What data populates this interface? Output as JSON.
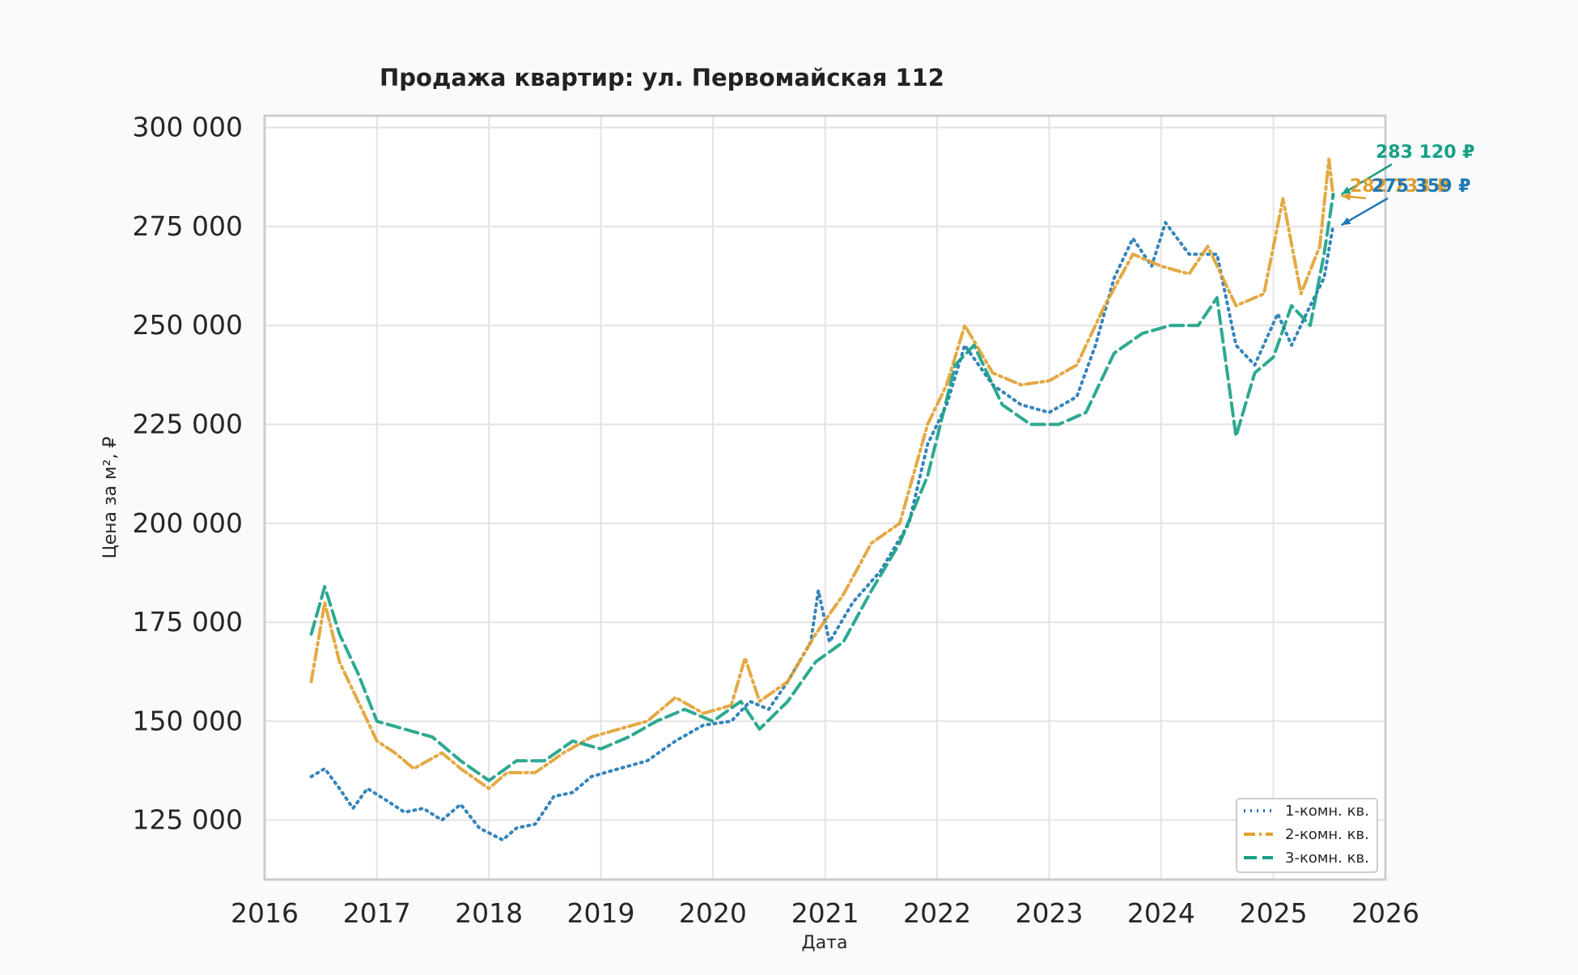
{
  "chart_data": {
    "type": "line",
    "title": "Продажа квартир: ул. Первомайская 112",
    "xlabel": "Дата",
    "ylabel": "Цена за м², ₽",
    "xlim": [
      "2016-01-01",
      "2026-01-01"
    ],
    "ylim": [
      110000,
      303000
    ],
    "x_ticks": [
      "2016",
      "2017",
      "2018",
      "2019",
      "2020",
      "2021",
      "2022",
      "2023",
      "2024",
      "2025",
      "2026"
    ],
    "y_ticks": [
      125000,
      150000,
      175000,
      200000,
      225000,
      250000,
      275000,
      300000
    ],
    "y_tick_labels": [
      "125 000",
      "150 000",
      "175 000",
      "200 000",
      "225 000",
      "250 000",
      "275 000",
      "300 000"
    ],
    "grid": true,
    "legend_position": "bottom-right",
    "series": [
      {
        "name": "1-комн. кв.",
        "color": "#1f78b4",
        "style": "dotted",
        "points": [
          [
            "2016-06-01",
            136000
          ],
          [
            "2016-07-15",
            138000
          ],
          [
            "2016-09-01",
            133000
          ],
          [
            "2016-10-15",
            128000
          ],
          [
            "2016-12-01",
            133000
          ],
          [
            "2017-02-01",
            130000
          ],
          [
            "2017-04-01",
            127000
          ],
          [
            "2017-06-01",
            128000
          ],
          [
            "2017-08-01",
            125000
          ],
          [
            "2017-10-01",
            129000
          ],
          [
            "2017-12-01",
            123000
          ],
          [
            "2018-02-15",
            120000
          ],
          [
            "2018-04-01",
            123000
          ],
          [
            "2018-06-01",
            124000
          ],
          [
            "2018-08-01",
            131000
          ],
          [
            "2018-10-01",
            132000
          ],
          [
            "2018-12-01",
            136000
          ],
          [
            "2019-03-01",
            138000
          ],
          [
            "2019-06-01",
            140000
          ],
          [
            "2019-09-01",
            145000
          ],
          [
            "2019-12-01",
            149000
          ],
          [
            "2020-03-01",
            150000
          ],
          [
            "2020-05-01",
            155000
          ],
          [
            "2020-07-01",
            153000
          ],
          [
            "2020-09-01",
            160000
          ],
          [
            "2020-11-15",
            170000
          ],
          [
            "2020-12-10",
            183000
          ],
          [
            "2021-01-15",
            170000
          ],
          [
            "2021-04-01",
            180000
          ],
          [
            "2021-07-01",
            188000
          ],
          [
            "2021-10-01",
            200000
          ],
          [
            "2021-12-01",
            220000
          ],
          [
            "2022-02-01",
            230000
          ],
          [
            "2022-04-01",
            245000
          ],
          [
            "2022-07-01",
            235000
          ],
          [
            "2022-10-01",
            230000
          ],
          [
            "2023-01-01",
            228000
          ],
          [
            "2023-04-01",
            232000
          ],
          [
            "2023-06-01",
            245000
          ],
          [
            "2023-08-01",
            262000
          ],
          [
            "2023-10-01",
            272000
          ],
          [
            "2023-12-01",
            265000
          ],
          [
            "2024-01-15",
            276000
          ],
          [
            "2024-04-01",
            268000
          ],
          [
            "2024-07-01",
            268000
          ],
          [
            "2024-09-01",
            245000
          ],
          [
            "2024-11-01",
            240000
          ],
          [
            "2025-01-15",
            253000
          ],
          [
            "2025-03-01",
            245000
          ],
          [
            "2025-05-01",
            255000
          ],
          [
            "2025-06-15",
            262000
          ],
          [
            "2025-07-15",
            275359
          ]
        ]
      },
      {
        "name": "2-комн. кв.",
        "color": "#e0a030",
        "style": "dash-dot",
        "points": [
          [
            "2016-06-01",
            160000
          ],
          [
            "2016-07-15",
            180000
          ],
          [
            "2016-09-01",
            165000
          ],
          [
            "2016-11-01",
            155000
          ],
          [
            "2017-01-01",
            145000
          ],
          [
            "2017-03-01",
            142000
          ],
          [
            "2017-05-01",
            138000
          ],
          [
            "2017-08-01",
            142000
          ],
          [
            "2017-10-01",
            138000
          ],
          [
            "2018-01-01",
            133000
          ],
          [
            "2018-03-01",
            137000
          ],
          [
            "2018-06-01",
            137000
          ],
          [
            "2018-09-01",
            142000
          ],
          [
            "2018-12-01",
            146000
          ],
          [
            "2019-03-01",
            148000
          ],
          [
            "2019-06-01",
            150000
          ],
          [
            "2019-09-01",
            156000
          ],
          [
            "2019-12-01",
            152000
          ],
          [
            "2020-03-01",
            154000
          ],
          [
            "2020-04-15",
            166000
          ],
          [
            "2020-06-01",
            155000
          ],
          [
            "2020-09-01",
            160000
          ],
          [
            "2020-12-01",
            172000
          ],
          [
            "2021-03-01",
            182000
          ],
          [
            "2021-06-01",
            195000
          ],
          [
            "2021-09-01",
            200000
          ],
          [
            "2021-12-01",
            225000
          ],
          [
            "2022-02-01",
            235000
          ],
          [
            "2022-04-01",
            250000
          ],
          [
            "2022-07-01",
            238000
          ],
          [
            "2022-10-01",
            235000
          ],
          [
            "2023-01-01",
            236000
          ],
          [
            "2023-04-01",
            240000
          ],
          [
            "2023-07-01",
            255000
          ],
          [
            "2023-10-01",
            268000
          ],
          [
            "2024-01-01",
            265000
          ],
          [
            "2024-04-01",
            263000
          ],
          [
            "2024-06-01",
            270000
          ],
          [
            "2024-09-01",
            255000
          ],
          [
            "2024-12-01",
            258000
          ],
          [
            "2025-02-01",
            282000
          ],
          [
            "2025-04-01",
            258000
          ],
          [
            "2025-06-01",
            270000
          ],
          [
            "2025-07-01",
            292000
          ],
          [
            "2025-07-15",
            282733
          ]
        ]
      },
      {
        "name": "3-комн. кв.",
        "color": "#16a085",
        "style": "dashed",
        "points": [
          [
            "2016-06-01",
            172000
          ],
          [
            "2016-07-15",
            184000
          ],
          [
            "2016-09-01",
            172000
          ],
          [
            "2016-11-01",
            162000
          ],
          [
            "2017-01-01",
            150000
          ],
          [
            "2017-04-01",
            148000
          ],
          [
            "2017-07-01",
            146000
          ],
          [
            "2017-10-01",
            140000
          ],
          [
            "2018-01-01",
            135000
          ],
          [
            "2018-04-01",
            140000
          ],
          [
            "2018-07-01",
            140000
          ],
          [
            "2018-10-01",
            145000
          ],
          [
            "2019-01-01",
            143000
          ],
          [
            "2019-04-01",
            146000
          ],
          [
            "2019-07-01",
            150000
          ],
          [
            "2019-10-01",
            153000
          ],
          [
            "2020-01-01",
            150000
          ],
          [
            "2020-04-01",
            155000
          ],
          [
            "2020-06-01",
            148000
          ],
          [
            "2020-09-01",
            155000
          ],
          [
            "2020-12-01",
            165000
          ],
          [
            "2021-03-01",
            170000
          ],
          [
            "2021-06-01",
            183000
          ],
          [
            "2021-09-01",
            195000
          ],
          [
            "2021-12-01",
            212000
          ],
          [
            "2022-03-01",
            240000
          ],
          [
            "2022-05-01",
            245000
          ],
          [
            "2022-08-01",
            230000
          ],
          [
            "2022-11-01",
            225000
          ],
          [
            "2023-02-01",
            225000
          ],
          [
            "2023-05-01",
            228000
          ],
          [
            "2023-08-01",
            243000
          ],
          [
            "2023-11-01",
            248000
          ],
          [
            "2024-02-01",
            250000
          ],
          [
            "2024-05-01",
            250000
          ],
          [
            "2024-07-01",
            257000
          ],
          [
            "2024-09-01",
            222000
          ],
          [
            "2024-11-01",
            238000
          ],
          [
            "2025-01-01",
            242000
          ],
          [
            "2025-03-01",
            255000
          ],
          [
            "2025-05-01",
            250000
          ],
          [
            "2025-06-15",
            268000
          ],
          [
            "2025-07-15",
            283120
          ]
        ]
      }
    ],
    "annotations": [
      {
        "series": "3-комн. кв.",
        "text": "283 120 ₽",
        "color": "#16a085"
      },
      {
        "series": "2-комн. кв.",
        "text": "282 733 ₽",
        "color": "#e0a030"
      },
      {
        "series": "1-комн. кв.",
        "text": "275 359 ₽",
        "color": "#1f78b4"
      }
    ]
  }
}
